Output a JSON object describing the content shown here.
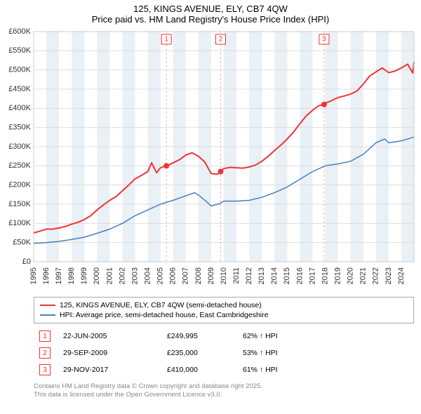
{
  "title_line1": "125, KINGS AVENUE, ELY, CB7 4QW",
  "title_line2": "Price paid vs. HM Land Registry's House Price Index (HPI)",
  "chart": {
    "type": "line",
    "background_color": "#ffffff",
    "plot_border_color": "#cccccc",
    "grid_color": "#dddddd",
    "band_fill": "#e9f0f6",
    "event_line_color": "#e2b8b8",
    "y": {
      "min": 0,
      "max": 600000,
      "step": 50000,
      "prefix": "£",
      "suffix": "K",
      "ticks": [
        "£0",
        "£50K",
        "£100K",
        "£150K",
        "£200K",
        "£250K",
        "£300K",
        "£350K",
        "£400K",
        "£450K",
        "£500K",
        "£550K",
        "£600K"
      ]
    },
    "x": {
      "min": 1995,
      "max": 2025,
      "step": 1,
      "ticks": [
        "1995",
        "1996",
        "1997",
        "1998",
        "1999",
        "2000",
        "2001",
        "2002",
        "2003",
        "2004",
        "2005",
        "2006",
        "2007",
        "2008",
        "2009",
        "2010",
        "2011",
        "2012",
        "2013",
        "2014",
        "2015",
        "2016",
        "2017",
        "2018",
        "2019",
        "2020",
        "2021",
        "2022",
        "2023",
        "2024"
      ],
      "bands": [
        [
          1996,
          1997
        ],
        [
          1998,
          1999
        ],
        [
          2000,
          2001
        ],
        [
          2002,
          2003
        ],
        [
          2004,
          2005
        ],
        [
          2006,
          2007
        ],
        [
          2008,
          2009
        ],
        [
          2010,
          2011
        ],
        [
          2012,
          2013
        ],
        [
          2014,
          2015
        ],
        [
          2016,
          2017
        ],
        [
          2018,
          2019
        ],
        [
          2020,
          2021
        ],
        [
          2022,
          2023
        ],
        [
          2024,
          2025
        ]
      ]
    },
    "series": [
      {
        "name": "price_paid",
        "label": "125, KINGS AVENUE, ELY, CB7 4QW (semi-detached house)",
        "color": "#ee3333",
        "line_width": 2,
        "data": [
          [
            1995,
            75000
          ],
          [
            1995.5,
            80000
          ],
          [
            1996,
            85000
          ],
          [
            1996.5,
            85000
          ],
          [
            1997,
            88000
          ],
          [
            1997.5,
            92000
          ],
          [
            1998,
            98000
          ],
          [
            1998.5,
            103000
          ],
          [
            1999,
            110000
          ],
          [
            1999.5,
            120000
          ],
          [
            2000,
            135000
          ],
          [
            2000.5,
            148000
          ],
          [
            2001,
            160000
          ],
          [
            2001.5,
            170000
          ],
          [
            2002,
            185000
          ],
          [
            2002.5,
            200000
          ],
          [
            2003,
            216000
          ],
          [
            2003.5,
            225000
          ],
          [
            2004,
            235000
          ],
          [
            2004.3,
            258000
          ],
          [
            2004.7,
            232000
          ],
          [
            2005,
            245000
          ],
          [
            2005.47,
            249995
          ],
          [
            2005.7,
            253000
          ],
          [
            2006,
            258000
          ],
          [
            2006.5,
            266000
          ],
          [
            2007,
            278000
          ],
          [
            2007.5,
            284000
          ],
          [
            2008,
            275000
          ],
          [
            2008.5,
            260000
          ],
          [
            2009,
            230000
          ],
          [
            2009.5,
            228000
          ],
          [
            2009.75,
            235000
          ],
          [
            2010,
            243000
          ],
          [
            2010.5,
            246000
          ],
          [
            2011,
            245000
          ],
          [
            2011.5,
            244000
          ],
          [
            2012,
            247000
          ],
          [
            2012.5,
            252000
          ],
          [
            2013,
            262000
          ],
          [
            2013.5,
            275000
          ],
          [
            2014,
            290000
          ],
          [
            2014.5,
            304000
          ],
          [
            2015,
            320000
          ],
          [
            2015.5,
            338000
          ],
          [
            2016,
            360000
          ],
          [
            2016.5,
            380000
          ],
          [
            2017,
            395000
          ],
          [
            2017.5,
            407000
          ],
          [
            2017.91,
            410000
          ],
          [
            2018,
            413000
          ],
          [
            2018.5,
            420000
          ],
          [
            2019,
            428000
          ],
          [
            2019.5,
            432000
          ],
          [
            2020,
            437000
          ],
          [
            2020.5,
            445000
          ],
          [
            2021,
            463000
          ],
          [
            2021.5,
            484000
          ],
          [
            2022,
            495000
          ],
          [
            2022.5,
            505000
          ],
          [
            2023,
            493000
          ],
          [
            2023.5,
            497000
          ],
          [
            2024,
            505000
          ],
          [
            2024.5,
            515000
          ],
          [
            2024.9,
            492000
          ],
          [
            2025,
            520000
          ]
        ]
      },
      {
        "name": "hpi",
        "label": "HPI: Average price, semi-detached house, East Cambridgeshire",
        "color": "#4a7ebb",
        "line_width": 1.5,
        "data": [
          [
            1995,
            48000
          ],
          [
            1996,
            50000
          ],
          [
            1997,
            53000
          ],
          [
            1998,
            58000
          ],
          [
            1999,
            64000
          ],
          [
            2000,
            74000
          ],
          [
            2001,
            85000
          ],
          [
            2002,
            100000
          ],
          [
            2003,
            120000
          ],
          [
            2004,
            135000
          ],
          [
            2005,
            150000
          ],
          [
            2006,
            160000
          ],
          [
            2007,
            172000
          ],
          [
            2007.7,
            180000
          ],
          [
            2008,
            174000
          ],
          [
            2008.7,
            155000
          ],
          [
            2009,
            145000
          ],
          [
            2009.7,
            152000
          ],
          [
            2010,
            158000
          ],
          [
            2011,
            158000
          ],
          [
            2012,
            160000
          ],
          [
            2013,
            168000
          ],
          [
            2014,
            180000
          ],
          [
            2015,
            195000
          ],
          [
            2016,
            215000
          ],
          [
            2017,
            235000
          ],
          [
            2018,
            250000
          ],
          [
            2019,
            255000
          ],
          [
            2020,
            262000
          ],
          [
            2021,
            280000
          ],
          [
            2022,
            310000
          ],
          [
            2022.7,
            320000
          ],
          [
            2023,
            310000
          ],
          [
            2024,
            315000
          ],
          [
            2025,
            325000
          ]
        ]
      }
    ],
    "event_markers": [
      {
        "n": "1",
        "x": 2005.47,
        "y": 249995
      },
      {
        "n": "2",
        "x": 2009.75,
        "y": 235000
      },
      {
        "n": "3",
        "x": 2017.91,
        "y": 410000
      }
    ]
  },
  "legend": [
    {
      "color": "#ee3333",
      "label": "125, KINGS AVENUE, ELY, CB7 4QW (semi-detached house)"
    },
    {
      "color": "#4a7ebb",
      "label": "HPI: Average price, semi-detached house, East Cambridgeshire"
    }
  ],
  "events": [
    {
      "n": "1",
      "date": "22-JUN-2005",
      "price": "£249,995",
      "pct": "62% ↑ HPI"
    },
    {
      "n": "2",
      "date": "29-SEP-2009",
      "price": "£235,000",
      "pct": "53% ↑ HPI"
    },
    {
      "n": "3",
      "date": "29-NOV-2017",
      "price": "£410,000",
      "pct": "61% ↑ HPI"
    }
  ],
  "footer_line1": "Contains HM Land Registry data © Crown copyright and database right 2025.",
  "footer_line2": "This data is licensed under the Open Government Licence v3.0."
}
